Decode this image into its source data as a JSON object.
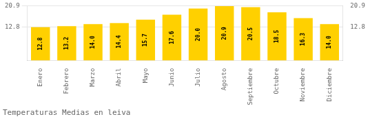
{
  "chart_data": {
    "type": "bar",
    "title": "Temperaturas Medias en leiva",
    "categories": [
      "Enero",
      "Febrero",
      "Marzo",
      "Abril",
      "Mayo",
      "Junio",
      "Julio",
      "Agosto",
      "Septiembre",
      "Octubre",
      "Noviembre",
      "Diciembre"
    ],
    "values": [
      12.8,
      13.2,
      14.0,
      14.4,
      15.7,
      17.6,
      20.0,
      20.9,
      20.5,
      18.5,
      16.3,
      14.0
    ],
    "value_labels": [
      "12.8",
      "13.2",
      "14.0",
      "14.4",
      "15.7",
      "17.6",
      "20.0",
      "20.9",
      "20.5",
      "18.5",
      "16.3",
      "14.0"
    ],
    "color": "#FFD000",
    "ylim": [
      0,
      21.05
    ],
    "yticks": [
      12.8,
      20.9
    ],
    "y2lim": [
      0,
      21.05
    ],
    "y2ticks": [
      12.8,
      20.9
    ],
    "grid": true,
    "data_labels": true
  }
}
